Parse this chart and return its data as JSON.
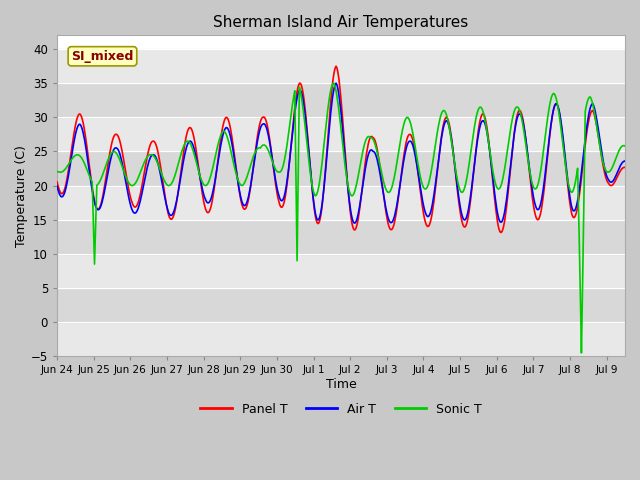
{
  "title": "Sherman Island Air Temperatures",
  "xlabel": "Time",
  "ylabel": "Temperature (C)",
  "ylim": [
    -5,
    42
  ],
  "yticks": [
    -5,
    0,
    5,
    10,
    15,
    20,
    25,
    30,
    35,
    40
  ],
  "annotation_text": "SI_mixed",
  "annotation_color": "#8b0000",
  "annotation_bg": "#ffffc0",
  "annotation_edge": "#999900",
  "line_colors": {
    "panel": "#ff0000",
    "air": "#0000ff",
    "sonic": "#00cc00"
  },
  "legend_labels": [
    "Panel T",
    "Air T",
    "Sonic T"
  ],
  "x_tick_labels": [
    "Jun 24",
    "Jun 25",
    "Jun 26",
    "Jun 27",
    "Jun 28",
    "Jun 29",
    "Jun 30",
    "Jul 1",
    "Jul 2",
    "Jul 3",
    "Jul 4",
    "Jul 5",
    "Jul 6",
    "Jul 7",
    "Jul 8",
    "Jul 9"
  ],
  "fig_bg": "#c8c8c8",
  "band_colors": [
    "#e8e8e8",
    "#d8d8d8"
  ],
  "grid_color": "#ffffff",
  "xlim": [
    0,
    15.5
  ],
  "linewidth": 1.2
}
